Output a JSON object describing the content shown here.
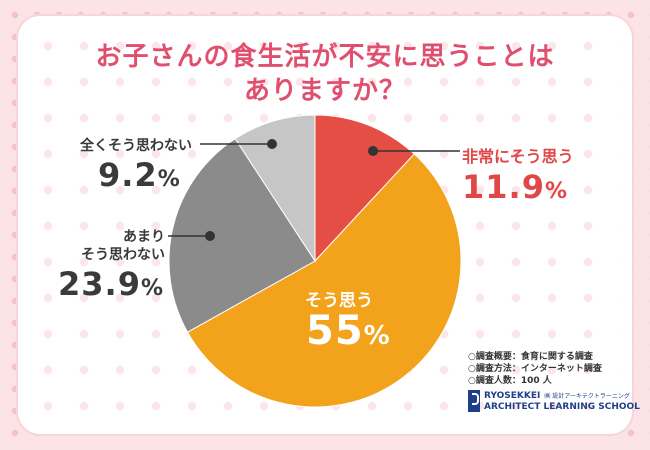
{
  "title": {
    "line1": "お子さんの食生活が不安に思うことは",
    "line2": "ありますか？"
  },
  "chart_data": {
    "type": "pie",
    "start_angle_deg": 0,
    "direction": "clockwise",
    "slices": [
      {
        "label": "非常にそう思う",
        "value": 11.9,
        "display": "11.9",
        "color": "#e54e45"
      },
      {
        "label": "そう思う",
        "value": 55,
        "display": "55",
        "color": "#f3a21c"
      },
      {
        "label": "あまり そう思わない",
        "label_lines": [
          "あまり",
          "そう思わない"
        ],
        "value": 23.9,
        "display": "23.9",
        "color": "#8b8b8b"
      },
      {
        "label": "全くそう思わない",
        "value": 9.2,
        "display": "9.2",
        "color": "#c6c6c6"
      }
    ],
    "unit": "%"
  },
  "survey": {
    "line1": "○調査概要：食育に関する調査",
    "line2": "○調査方法：インターネット調査",
    "line3": "○調査人数：100 人"
  },
  "logo": {
    "name": "RYOSEKKEI",
    "kana": "㈱ 設計アーキテクトラーニング",
    "english": "ARCHITECT LEARNING SCHOOL"
  }
}
